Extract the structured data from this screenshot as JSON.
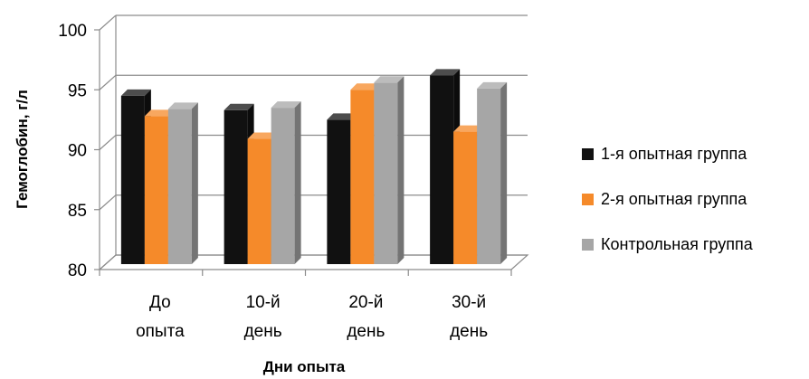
{
  "chart_data": {
    "type": "bar",
    "title": "",
    "xlabel": "Дни опыта",
    "ylabel": "Гемоглобин, г/л",
    "categories": [
      [
        "До",
        "опыта"
      ],
      [
        "10-й",
        "день"
      ],
      [
        "20-й",
        "день"
      ],
      [
        "30-й",
        "день"
      ]
    ],
    "series": [
      {
        "name": "1-я опытная группа",
        "color": "#111111",
        "values": [
          94.2,
          93.0,
          92.2,
          95.9
        ]
      },
      {
        "name": "2-я опытная группа",
        "color": "#f58a2a",
        "values": [
          92.5,
          90.6,
          94.7,
          91.2
        ]
      },
      {
        "name": "Контрольная группа",
        "color": "#a6a6a6",
        "values": [
          93.1,
          93.2,
          95.3,
          94.8
        ]
      }
    ],
    "ylim": [
      80,
      100
    ],
    "yticks": [
      "80",
      "85",
      "90",
      "95",
      "100"
    ],
    "grid": true,
    "legend_position": "right"
  }
}
